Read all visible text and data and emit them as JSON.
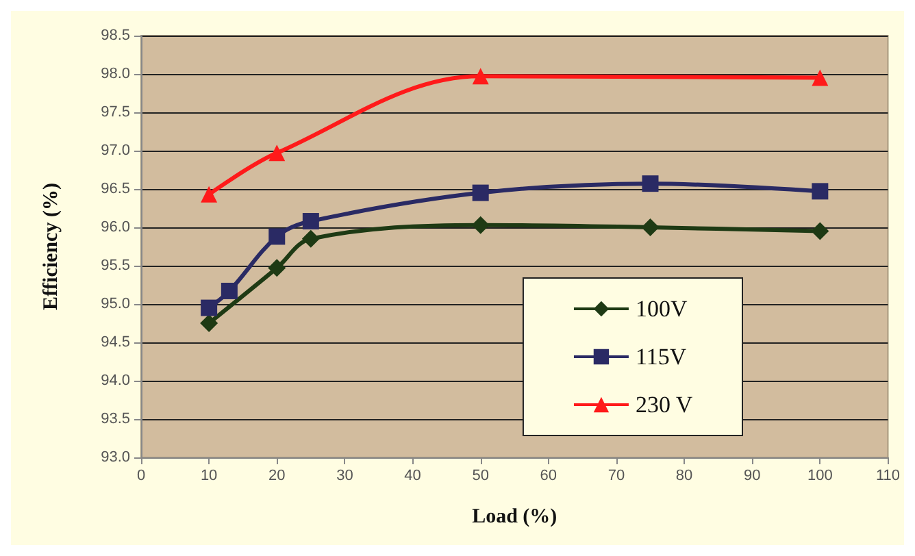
{
  "chart_data": {
    "type": "line",
    "xlabel": "Load (%)",
    "ylabel": "Efficiency (%)",
    "xlim": [
      0,
      110
    ],
    "xticks": [
      0,
      10,
      20,
      30,
      40,
      50,
      60,
      70,
      80,
      90,
      100,
      110
    ],
    "ylim": [
      93.0,
      98.5
    ],
    "yticks": [
      {
        "value": 93.0,
        "label": "93.0"
      },
      {
        "value": 93.5,
        "label": "93.5"
      },
      {
        "value": 94.0,
        "label": "94.0"
      },
      {
        "value": 94.5,
        "label": "94.5"
      },
      {
        "value": 95.0,
        "label": "95.0"
      },
      {
        "value": 95.5,
        "label": "95.5"
      },
      {
        "value": 96.0,
        "label": "96.0"
      },
      {
        "value": 96.5,
        "label": "96.5"
      },
      {
        "value": 97.0,
        "label": "97.0"
      },
      {
        "value": 97.5,
        "label": "97.5"
      },
      {
        "value": 98.0,
        "label": "98.0"
      },
      {
        "value": 98.5,
        "label": "98.5"
      }
    ],
    "grid": "y",
    "legend": "bottom right",
    "series": [
      {
        "name": "100V",
        "color": "#1e3a14",
        "marker": "diamond",
        "x": [
          10,
          20,
          25,
          50,
          75,
          100
        ],
        "values": [
          94.75,
          95.47,
          95.85,
          96.03,
          96.0,
          95.95
        ]
      },
      {
        "name": "115V",
        "color": "#2a2a64",
        "marker": "square",
        "x": [
          10,
          13,
          20,
          25,
          50,
          75,
          100
        ],
        "values": [
          94.95,
          95.17,
          95.88,
          96.08,
          96.45,
          96.57,
          96.47
        ]
      },
      {
        "name": "230 V",
        "color": "#ff1a1a",
        "marker": "triangle",
        "x": [
          10,
          20,
          50,
          100
        ],
        "values": [
          96.43,
          96.97,
          97.97,
          97.95
        ]
      }
    ]
  }
}
